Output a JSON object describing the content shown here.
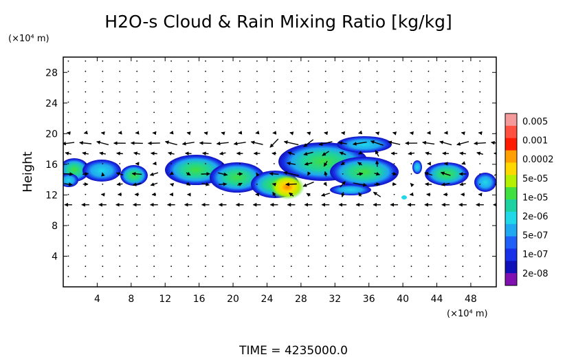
{
  "chart_data": {
    "type": "heatmap",
    "title": "H2O-s Cloud & Rain Mixing Ratio [kg/kg]",
    "xlabel": "",
    "ylabel": "Height",
    "x_unit": "(×10⁴ m)",
    "y_unit": "(×10⁴ m)",
    "xlim": [
      0,
      51
    ],
    "ylim": [
      0,
      30
    ],
    "x_ticks": [
      "4",
      "8",
      "12",
      "16",
      "20",
      "24",
      "28",
      "32",
      "36",
      "40",
      "44",
      "48"
    ],
    "y_ticks": [
      "4",
      "8",
      "12",
      "16",
      "20",
      "24",
      "28"
    ],
    "colorbar": {
      "labels": [
        "0.005",
        "0.001",
        "0.0002",
        "5e-05",
        "1e-05",
        "2e-06",
        "5e-07",
        "1e-07",
        "2e-08"
      ],
      "colors": [
        "#f59a9a",
        "#ff5040",
        "#ff1a00",
        "#ffa000",
        "#ffd800",
        "#b4f000",
        "#40e040",
        "#1ed1a0",
        "#20d8e8",
        "#20a8f0",
        "#2060f8",
        "#1830e8",
        "#1010b8",
        "#8010b0"
      ],
      "order": "top-to-bottom"
    },
    "cloud_regions": [
      {
        "x_range": [
          0,
          2.5
        ],
        "y_range": [
          12.8,
          16.6
        ],
        "peak": "1e-07"
      },
      {
        "x_range": [
          3,
          10
        ],
        "y_range": [
          12.5,
          16.5
        ],
        "peak": "5e-07"
      },
      {
        "x_range": [
          13,
          30
        ],
        "y_range": [
          11,
          17
        ],
        "peak": "0.0002"
      },
      {
        "x_range": [
          26,
          39
        ],
        "y_range": [
          12,
          19.3
        ],
        "peak": "1e-05"
      },
      {
        "x_range": [
          33,
          39
        ],
        "y_range": [
          17.5,
          19.5
        ],
        "peak": "1e-07"
      },
      {
        "x_range": [
          42,
          51
        ],
        "y_range": [
          12,
          16.5
        ],
        "peak": "5e-07"
      }
    ],
    "wind_vectors": "arrow field overlay; strong horizontal flow near heights 14 and 18"
  },
  "footer": {
    "time_label": "TIME = 4235000.0"
  }
}
